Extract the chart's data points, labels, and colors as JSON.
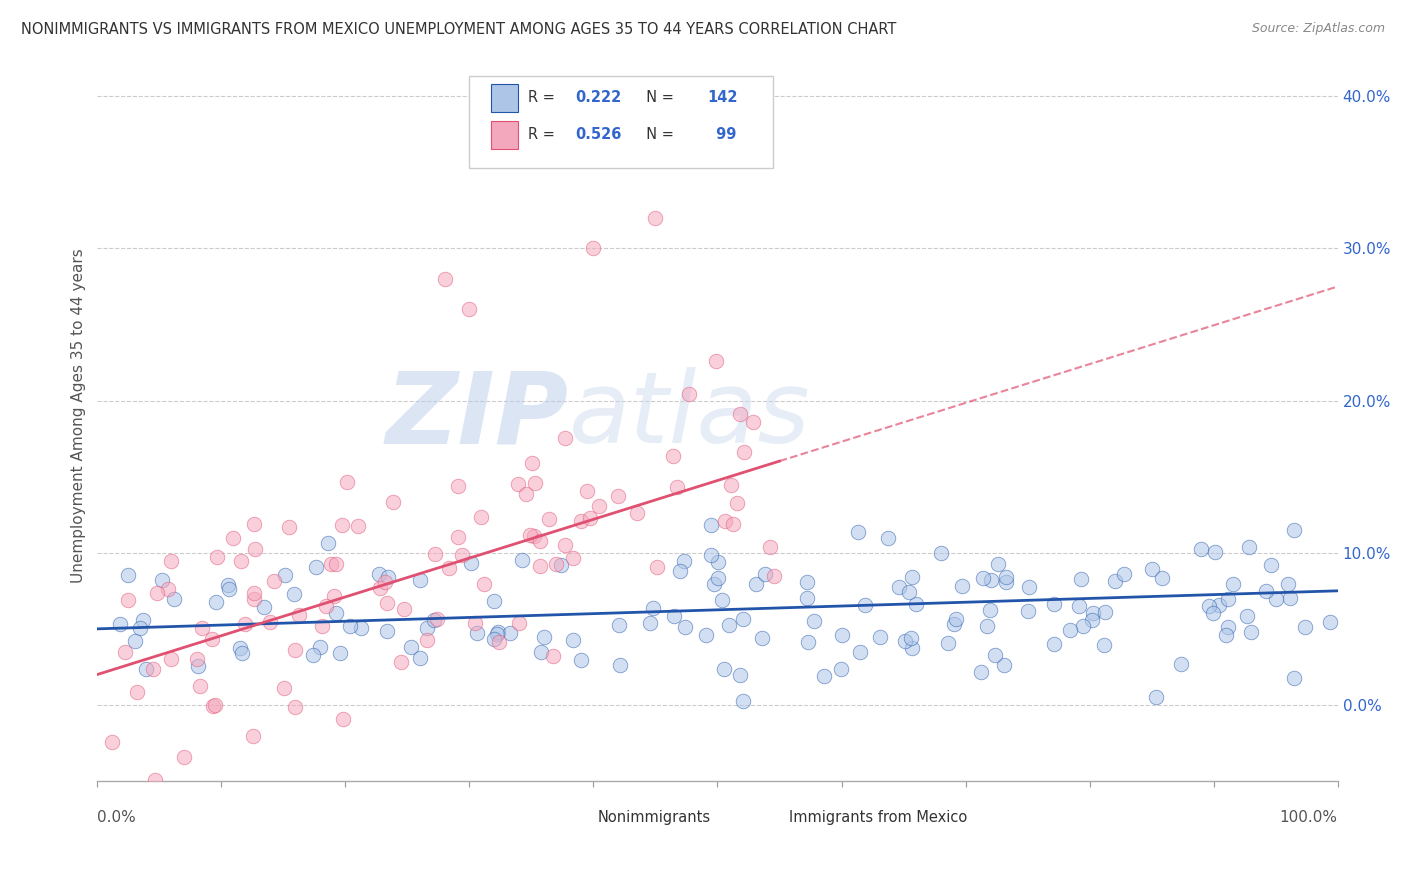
{
  "title": "NONIMMIGRANTS VS IMMIGRANTS FROM MEXICO UNEMPLOYMENT AMONG AGES 35 TO 44 YEARS CORRELATION CHART",
  "source": "Source: ZipAtlas.com",
  "ylabel": "Unemployment Among Ages 35 to 44 years",
  "xlim": [
    0,
    100
  ],
  "ylim": [
    -5,
    43
  ],
  "yticks": [
    0,
    10,
    20,
    30,
    40
  ],
  "ytick_labels": [
    "0.0%",
    "10.0%",
    "20.0%",
    "30.0%",
    "40.0%"
  ],
  "background_color": "#ffffff",
  "grid_color": "#cccccc",
  "nonimmigrant_scatter_color": "#adc6e8",
  "immigrant_scatter_color": "#f4a8be",
  "nonimmigrant_line_color": "#2255aa",
  "immigrant_line_color": "#e05070",
  "nonimmigrant_R": 0.222,
  "immigrant_R": 0.526,
  "nonimmigrant_N": 142,
  "immigrant_N": 99,
  "watermark_zip_color": "#c8d8f0",
  "watermark_atlas_color": "#d0d8e8"
}
